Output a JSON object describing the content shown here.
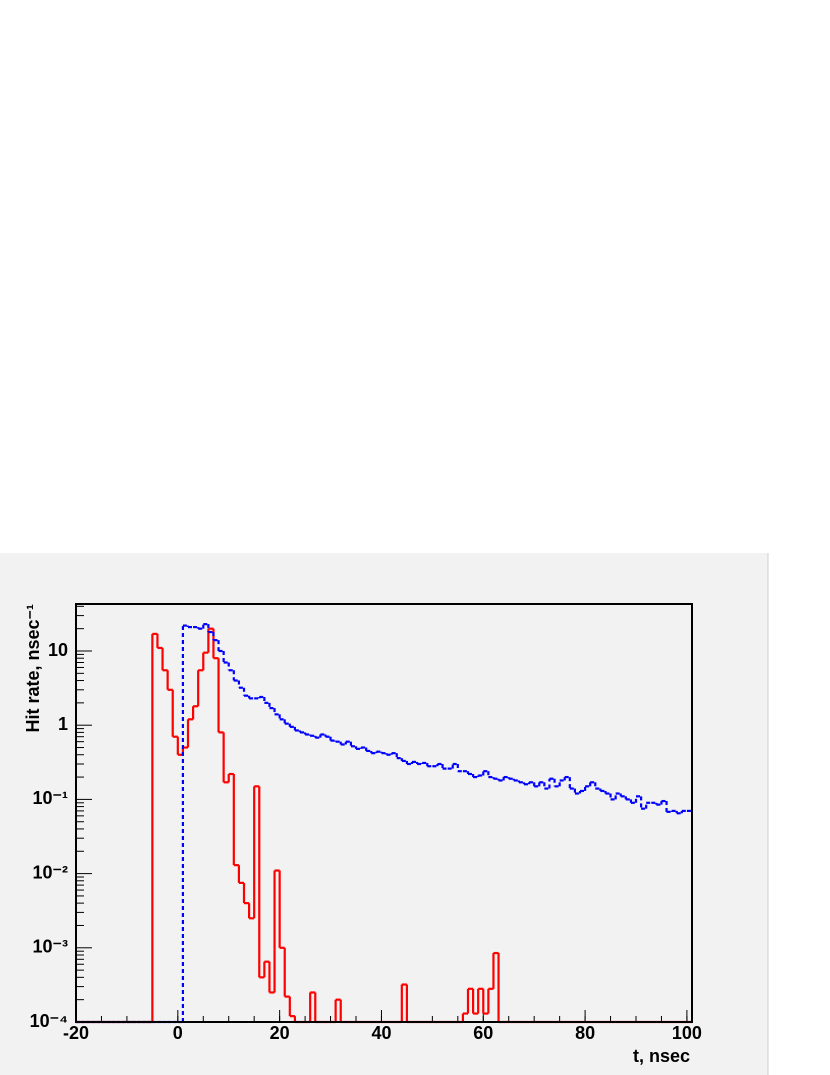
{
  "chart_data": {
    "type": "histogram",
    "y_label": "Hit rate, nsec⁻¹",
    "x_label": "t,  nsec",
    "log_y": true,
    "xlim": [
      -20,
      101
    ],
    "xticks": [
      -20,
      0,
      20,
      40,
      60,
      80,
      100
    ],
    "ylim": [
      0.0001,
      43
    ],
    "yticks": [
      {
        "value": 0.0001,
        "label": "10⁻⁴"
      },
      {
        "value": 0.001,
        "label": "10⁻³"
      },
      {
        "value": 0.01,
        "label": "10⁻²"
      },
      {
        "value": 0.1,
        "label": "10⁻¹"
      },
      1,
      10
    ],
    "bins": [
      -20,
      -19,
      -18,
      -17,
      -16,
      -15,
      -14,
      -13,
      -12,
      -11,
      -10,
      -9,
      -8,
      -7,
      -6,
      -5,
      -4,
      -3,
      -2,
      -1,
      0,
      1,
      2,
      3,
      4,
      5,
      6,
      7,
      8,
      9,
      10,
      11,
      12,
      13,
      14,
      15,
      16,
      17,
      18,
      19,
      20,
      21,
      22,
      23,
      24,
      25,
      26,
      27,
      28,
      29,
      30,
      31,
      32,
      33,
      34,
      35,
      36,
      37,
      38,
      39,
      40,
      41,
      42,
      43,
      44,
      45,
      46,
      47,
      48,
      49,
      50,
      51,
      52,
      53,
      54,
      55,
      56,
      57,
      58,
      59,
      60,
      61,
      62,
      63,
      64,
      65,
      66,
      67,
      68,
      69,
      70,
      71,
      72,
      73,
      74,
      75,
      76,
      77,
      78,
      79,
      80,
      81,
      82,
      83,
      84,
      85,
      86,
      87,
      88,
      89,
      90,
      91,
      92,
      93,
      94,
      95,
      96,
      97,
      98,
      99,
      100,
      101
    ],
    "series": [
      {
        "color": "#ff0000",
        "style": "solid",
        "values": [
          0,
          0,
          0,
          0,
          0,
          0,
          0,
          0,
          0,
          0,
          0,
          0,
          0,
          0,
          0,
          17,
          11,
          5.5,
          3,
          0.7,
          0.4,
          0.5,
          1.2,
          1.8,
          5.5,
          9.5,
          20,
          8,
          0.8,
          0.17,
          0.22,
          0.013,
          0.0075,
          0.004,
          0.0025,
          0.15,
          0.0004,
          0.00065,
          0.00025,
          0.011,
          0.001,
          0.00022,
          0.00012,
          0,
          0,
          0,
          0.00025,
          0,
          0,
          0,
          0,
          0.0002,
          0,
          0,
          0,
          0,
          0,
          0,
          0,
          0,
          0,
          0,
          0,
          0,
          0.00032,
          0,
          0,
          0,
          0,
          0,
          0,
          0,
          0,
          0,
          0,
          0,
          0.00013,
          0.00028,
          0.00013,
          0.00028,
          0.00013,
          0.00028,
          0.00085,
          0,
          0,
          0,
          0,
          0,
          0,
          0,
          0,
          0,
          0,
          0,
          0,
          0,
          0,
          0,
          0,
          0,
          0,
          0,
          0,
          0,
          0,
          0,
          0,
          0,
          0,
          0,
          0,
          0,
          0,
          0,
          0,
          0,
          0,
          0,
          0,
          0,
          0
        ]
      },
      {
        "color": "#0000ff",
        "style": "dashed",
        "values": [
          0,
          0,
          0,
          0,
          0,
          0,
          0,
          0,
          0,
          0,
          0,
          0,
          0,
          0,
          0,
          0,
          0,
          0,
          0,
          0,
          0,
          22,
          21,
          21,
          20,
          23,
          18,
          14,
          10,
          7,
          5.5,
          4,
          3.2,
          2.5,
          2.3,
          2.3,
          2.4,
          2,
          1.7,
          1.4,
          1.2,
          1.05,
          0.95,
          0.85,
          0.8,
          0.75,
          0.72,
          0.68,
          0.75,
          0.7,
          0.62,
          0.6,
          0.55,
          0.6,
          0.52,
          0.48,
          0.5,
          0.45,
          0.42,
          0.44,
          0.42,
          0.4,
          0.42,
          0.36,
          0.33,
          0.3,
          0.32,
          0.3,
          0.31,
          0.28,
          0.28,
          0.3,
          0.26,
          0.26,
          0.3,
          0.24,
          0.24,
          0.22,
          0.2,
          0.21,
          0.24,
          0.2,
          0.19,
          0.18,
          0.2,
          0.19,
          0.18,
          0.17,
          0.16,
          0.17,
          0.15,
          0.17,
          0.14,
          0.19,
          0.15,
          0.18,
          0.2,
          0.14,
          0.12,
          0.13,
          0.15,
          0.17,
          0.14,
          0.13,
          0.12,
          0.1,
          0.12,
          0.11,
          0.1,
          0.09,
          0.11,
          0.075,
          0.09,
          0.09,
          0.085,
          0.095,
          0.068,
          0.07,
          0.065,
          0.07,
          0.07
        ]
      }
    ]
  }
}
